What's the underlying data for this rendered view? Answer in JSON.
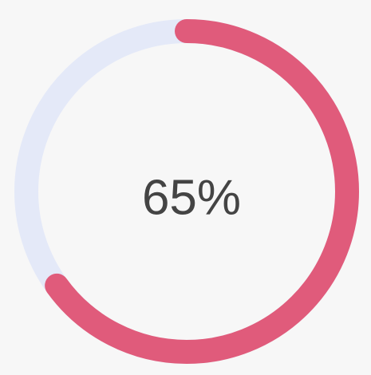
{
  "progress": {
    "value": 65,
    "value_label": "65%",
    "track_color": "#e4e9f8",
    "color": "#e05b7b"
  }
}
